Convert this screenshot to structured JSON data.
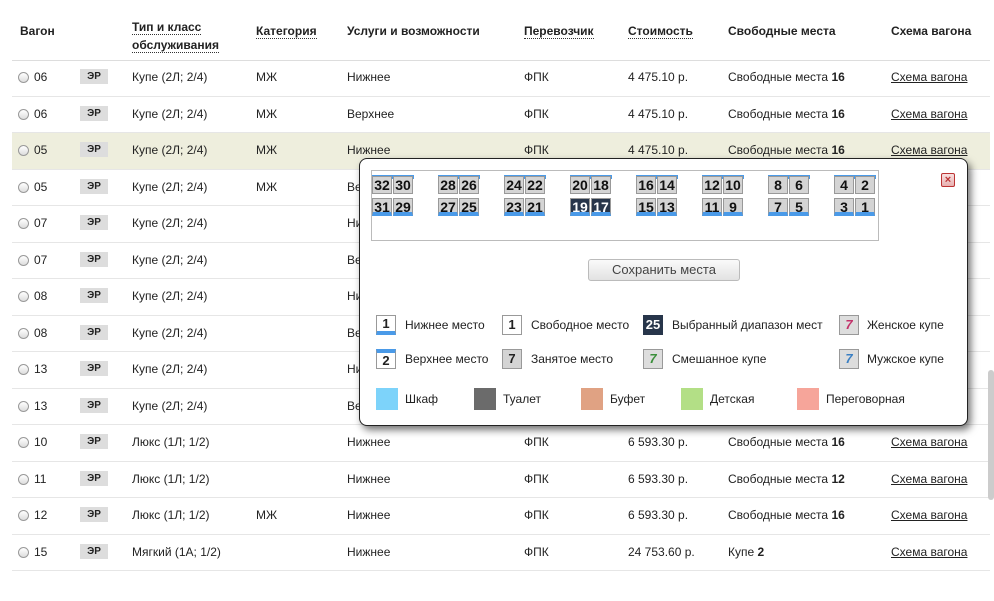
{
  "header": {
    "wagon": "Вагон",
    "type_line1": "Тип и класс",
    "type_line2": "обслуживания",
    "category": "Категория",
    "services": "Услуги и возможности",
    "carrier": "Перевозчик",
    "price": "Стоимость",
    "free": "Свободные места",
    "scheme": "Схема вагона"
  },
  "rows": [
    {
      "num": "06",
      "badge": "ЭР",
      "type": "Купе (2Л; 2/4)",
      "cat": "МЖ",
      "svc": "Нижнее",
      "carrier": "ФПК",
      "price": "4 475.10 р.",
      "free_label": "Свободные места",
      "free_count": "16",
      "scheme": "Схема вагона"
    },
    {
      "num": "06",
      "badge": "ЭР",
      "type": "Купе (2Л; 2/4)",
      "cat": "МЖ",
      "svc": "Верхнее",
      "carrier": "ФПК",
      "price": "4 475.10 р.",
      "free_label": "Свободные места",
      "free_count": "16",
      "scheme": "Схема вагона"
    },
    {
      "num": "05",
      "badge": "ЭР",
      "type": "Купе (2Л; 2/4)",
      "cat": "МЖ",
      "svc": "Нижнее",
      "carrier": "ФПК",
      "price": "4 475.10 р.",
      "free_label": "Свободные места",
      "free_count": "16",
      "scheme": "Схема вагона"
    },
    {
      "num": "05",
      "badge": "ЭР",
      "type": "Купе (2Л; 2/4)",
      "cat": "МЖ",
      "svc": "Ве",
      "carrier": "",
      "price": "",
      "free_label": "",
      "free_count": "",
      "scheme": ""
    },
    {
      "num": "07",
      "badge": "ЭР",
      "type": "Купе (2Л; 2/4)",
      "cat": "",
      "svc": "Ни",
      "carrier": "",
      "price": "",
      "free_label": "",
      "free_count": "",
      "scheme": ""
    },
    {
      "num": "07",
      "badge": "ЭР",
      "type": "Купе (2Л; 2/4)",
      "cat": "",
      "svc": "Ве",
      "carrier": "",
      "price": "",
      "free_label": "",
      "free_count": "",
      "scheme": ""
    },
    {
      "num": "08",
      "badge": "ЭР",
      "type": "Купе (2Л; 2/4)",
      "cat": "",
      "svc": "Ни",
      "carrier": "",
      "price": "",
      "free_label": "",
      "free_count": "",
      "scheme": ""
    },
    {
      "num": "08",
      "badge": "ЭР",
      "type": "Купе (2Л; 2/4)",
      "cat": "",
      "svc": "Ве",
      "carrier": "",
      "price": "",
      "free_label": "",
      "free_count": "",
      "scheme": ""
    },
    {
      "num": "13",
      "badge": "ЭР",
      "type": "Купе (2Л; 2/4)",
      "cat": "",
      "svc": "Ни",
      "carrier": "",
      "price": "",
      "free_label": "",
      "free_count": "",
      "scheme": ""
    },
    {
      "num": "13",
      "badge": "ЭР",
      "type": "Купе (2Л; 2/4)",
      "cat": "",
      "svc": "Ве",
      "carrier": "",
      "price": "",
      "free_label": "",
      "free_count": "",
      "scheme": ""
    },
    {
      "num": "10",
      "badge": "ЭР",
      "type": "Люкс (1Л; 1/2)",
      "cat": "",
      "svc": "Нижнее",
      "carrier": "ФПК",
      "price": "6 593.30 р.",
      "free_label": "Свободные места",
      "free_count": "16",
      "scheme": "Схема вагона"
    },
    {
      "num": "11",
      "badge": "ЭР",
      "type": "Люкс (1Л; 1/2)",
      "cat": "",
      "svc": "Нижнее",
      "carrier": "ФПК",
      "price": "6 593.30 р.",
      "free_label": "Свободные места",
      "free_count": "12",
      "scheme": "Схема вагона"
    },
    {
      "num": "12",
      "badge": "ЭР",
      "type": "Люкс (1Л; 1/2)",
      "cat": "МЖ",
      "svc": "Нижнее",
      "carrier": "ФПК",
      "price": "6 593.30 р.",
      "free_label": "Свободные места",
      "free_count": "16",
      "scheme": "Схема вагона"
    },
    {
      "num": "15",
      "badge": "ЭР",
      "type": "Мягкий (1А; 1/2)",
      "cat": "",
      "svc": "Нижнее",
      "carrier": "ФПК",
      "price": "24 753.60 р.",
      "free_label": "Купе",
      "free_count": "2",
      "scheme": "Схема вагона"
    }
  ],
  "popup": {
    "close": "×",
    "compartments": [
      {
        "top": [
          "32",
          "30"
        ],
        "bottom": [
          "31",
          "29"
        ]
      },
      {
        "top": [
          "28",
          "26"
        ],
        "bottom": [
          "27",
          "25"
        ]
      },
      {
        "top": [
          "24",
          "22"
        ],
        "bottom": [
          "23",
          "21"
        ]
      },
      {
        "top": [
          "20",
          "18"
        ],
        "bottom": [
          "19",
          "17"
        ],
        "selected_bottom": true
      },
      {
        "top": [
          "16",
          "14"
        ],
        "bottom": [
          "15",
          "13"
        ]
      },
      {
        "top": [
          "12",
          "10"
        ],
        "bottom": [
          "11",
          "9"
        ]
      },
      {
        "top": [
          "8",
          "6"
        ],
        "bottom": [
          "7",
          "5"
        ]
      },
      {
        "top": [
          "4",
          "2"
        ],
        "bottom": [
          "3",
          "1"
        ]
      }
    ],
    "save_button": "Сохранить места",
    "legend": {
      "lower": {
        "num": "1",
        "label": "Нижнее место"
      },
      "free": {
        "num": "1",
        "label": "Свободное место"
      },
      "selected": {
        "num": "25",
        "label": "Выбранный диапазон мест"
      },
      "woman": {
        "num": "7",
        "label": "Женское купе"
      },
      "upper": {
        "num": "2",
        "label": "Верхнее место"
      },
      "busy": {
        "num": "7",
        "label": "Занятое место"
      },
      "mixed": {
        "num": "7",
        "label": "Смешанное купе"
      },
      "man": {
        "num": "7",
        "label": "Мужское купе"
      },
      "wardrobe": {
        "label": "Шкаф",
        "color": "#7dd3fa"
      },
      "toilet": {
        "label": "Туалет",
        "color": "#6b6b6b"
      },
      "buffet": {
        "label": "Буфет",
        "color": "#e0a283"
      },
      "kids": {
        "label": "Детская",
        "color": "#b3df86"
      },
      "meeting": {
        "label": "Переговорная",
        "color": "#f6a59a"
      }
    }
  }
}
